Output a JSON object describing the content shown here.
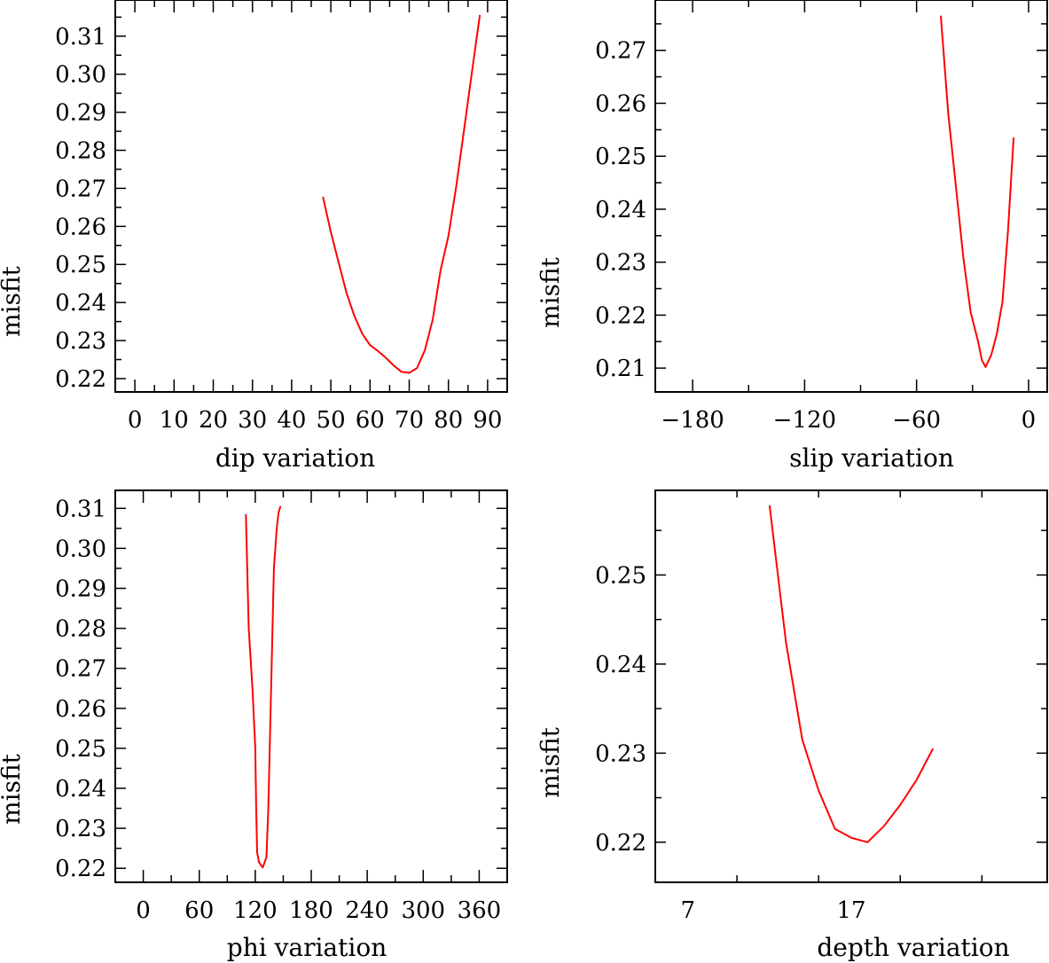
{
  "chart_data": [
    {
      "type": "line",
      "title": "",
      "xlabel": "dip    variation",
      "ylabel": "misfit",
      "xlim": [
        -5,
        95
      ],
      "ylim": [
        0.2165,
        0.3195
      ],
      "xticks": [
        0,
        10,
        20,
        30,
        40,
        50,
        60,
        70,
        80,
        90
      ],
      "yticks": [
        0.22,
        0.23,
        0.24,
        0.25,
        0.26,
        0.27,
        0.28,
        0.29,
        0.3,
        0.31
      ],
      "ytick_labels": [
        "0.22",
        "0.23",
        "0.24",
        "0.25",
        "0.26",
        "0.27",
        "0.28",
        "0.29",
        "0.30",
        "0.31"
      ],
      "series": [
        {
          "name": "misfit",
          "color": "#ff0000",
          "x": [
            48,
            50,
            52,
            54,
            56,
            58,
            60,
            62,
            64,
            66,
            68,
            70,
            72,
            74,
            76,
            78,
            80,
            82,
            84,
            86,
            88
          ],
          "y": [
            0.2677,
            0.2585,
            0.2505,
            0.2425,
            0.2365,
            0.2318,
            0.2288,
            0.2273,
            0.2255,
            0.2235,
            0.2218,
            0.2215,
            0.2228,
            0.2275,
            0.2355,
            0.2485,
            0.2575,
            0.2705,
            0.2855,
            0.3005,
            0.3155
          ]
        }
      ]
    },
    {
      "type": "line",
      "title": "",
      "xlabel": "slip   variation",
      "ylabel": "misfit",
      "xlim": [
        -200,
        10
      ],
      "ylim": [
        0.2055,
        0.2795
      ],
      "xticks": [
        -180,
        -120,
        -60,
        0
      ],
      "xtick_labels": [
        "−180",
        "−120",
        "−60",
        "0"
      ],
      "yticks": [
        0.21,
        0.22,
        0.23,
        0.24,
        0.25,
        0.26,
        0.27
      ],
      "ytick_labels": [
        "0.21",
        "0.22",
        "0.23",
        "0.24",
        "0.25",
        "0.26",
        "0.27"
      ],
      "series": [
        {
          "name": "misfit",
          "color": "#ff0000",
          "x": [
            -47,
            -43,
            -39,
            -35,
            -31,
            -27,
            -25,
            -23,
            -20,
            -17,
            -14,
            -11,
            -8
          ],
          "y": [
            0.2765,
            0.258,
            0.2445,
            0.231,
            0.2205,
            0.215,
            0.2115,
            0.2102,
            0.2125,
            0.2165,
            0.2225,
            0.236,
            0.2535
          ]
        }
      ]
    },
    {
      "type": "line",
      "title": "",
      "xlabel": "phi     variation",
      "ylabel": "misfit",
      "xlim": [
        -30,
        390
      ],
      "ylim": [
        0.2165,
        0.3145
      ],
      "xticks": [
        0,
        60,
        120,
        180,
        240,
        300,
        360
      ],
      "yticks": [
        0.22,
        0.23,
        0.24,
        0.25,
        0.26,
        0.27,
        0.28,
        0.29,
        0.3,
        0.31
      ],
      "ytick_labels": [
        "0.22",
        "0.23",
        "0.24",
        "0.25",
        "0.26",
        "0.27",
        "0.28",
        "0.29",
        "0.30",
        "0.31"
      ],
      "series": [
        {
          "name": "misfit",
          "color": "#ff0000",
          "x": [
            110,
            113,
            117,
            120,
            121,
            122,
            124,
            128,
            132,
            134,
            136,
            138,
            140,
            143,
            145,
            147
          ],
          "y": [
            0.3085,
            0.28,
            0.265,
            0.25,
            0.235,
            0.224,
            0.2215,
            0.2202,
            0.2228,
            0.235,
            0.255,
            0.275,
            0.295,
            0.305,
            0.309,
            0.3105
          ]
        }
      ]
    },
    {
      "type": "line",
      "title": "",
      "xlabel": "depth  variation",
      "ylabel": "misfit",
      "xlim": [
        5,
        29
      ],
      "ylim": [
        0.2155,
        0.2595
      ],
      "xticks": [
        7,
        17
      ],
      "yticks": [
        0.22,
        0.23,
        0.24,
        0.25
      ],
      "ytick_labels": [
        "0.22",
        "0.23",
        "0.24",
        "0.25"
      ],
      "series": [
        {
          "name": "misfit",
          "color": "#ff0000",
          "x": [
            12,
            13,
            14,
            15,
            16,
            17,
            18,
            19,
            20,
            21,
            22
          ],
          "y": [
            0.2578,
            0.2425,
            0.2315,
            0.2258,
            0.2215,
            0.2205,
            0.22,
            0.2218,
            0.2242,
            0.227,
            0.2305
          ]
        }
      ]
    }
  ]
}
